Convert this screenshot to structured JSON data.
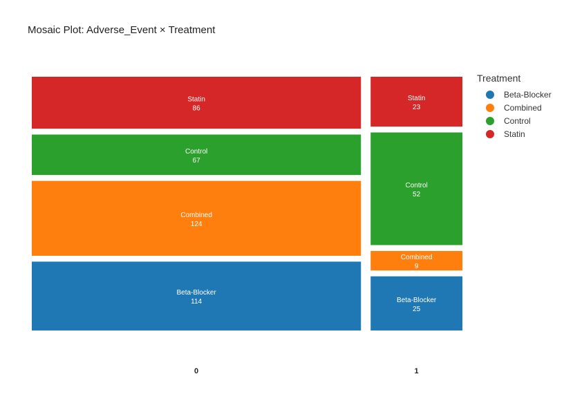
{
  "chart_data": {
    "type": "mosaic",
    "title": "Mosaic Plot: Adverse_Event × Treatment",
    "xlabel": "",
    "ylabel": "",
    "categories": [
      "0",
      "1"
    ],
    "legend_title": "Treatment",
    "legend_position": "top-right",
    "series": [
      {
        "name": "Beta-Blocker",
        "color": "#1f77b4",
        "values": [
          114,
          25
        ]
      },
      {
        "name": "Combined",
        "color": "#ff7f0e",
        "values": [
          124,
          9
        ]
      },
      {
        "name": "Control",
        "color": "#2ca02c",
        "values": [
          67,
          52
        ]
      },
      {
        "name": "Statin",
        "color": "#d62728",
        "values": [
          86,
          23
        ]
      }
    ]
  }
}
